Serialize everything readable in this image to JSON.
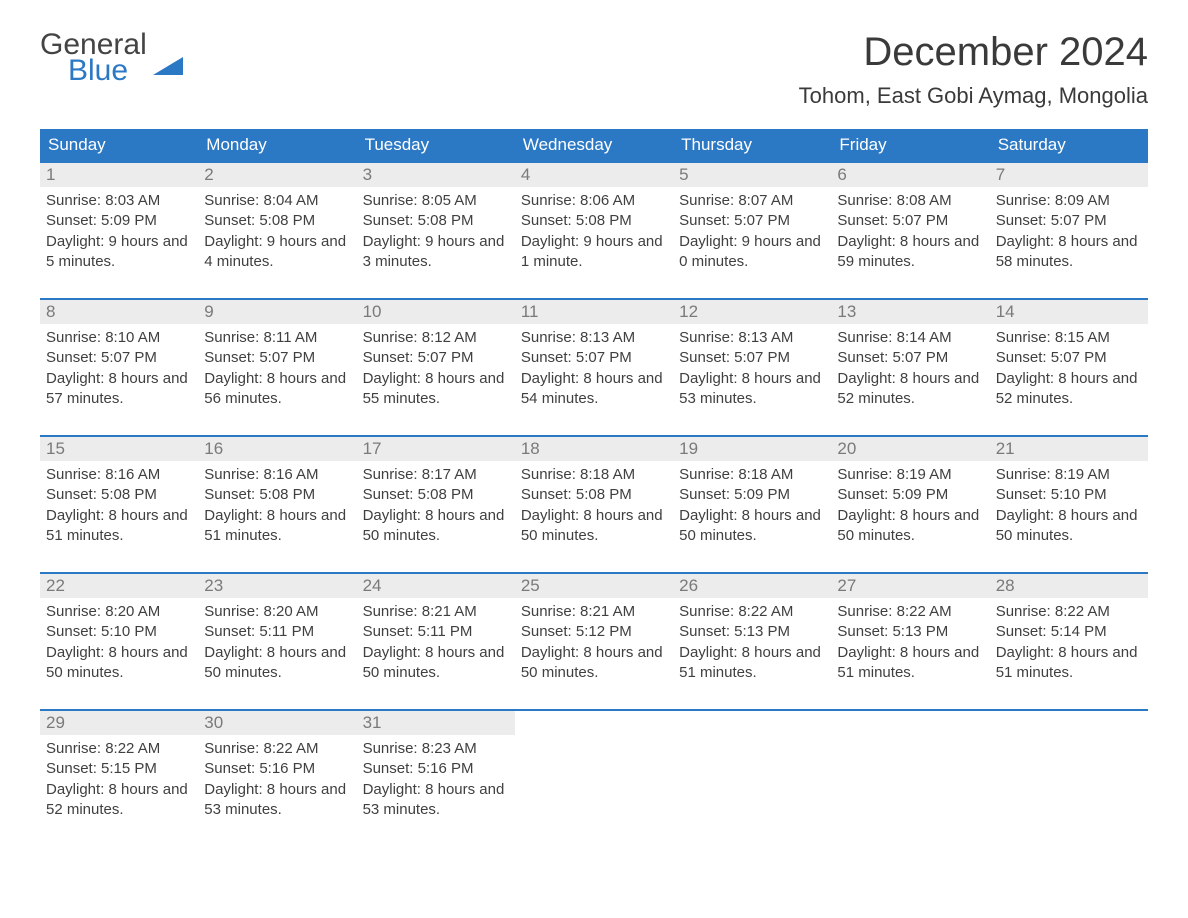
{
  "logo": {
    "text1": "General",
    "text2": "Blue"
  },
  "title": "December 2024",
  "location": "Tohom, East Gobi Aymag, Mongolia",
  "colors": {
    "header_bg": "#2b78c5",
    "header_text": "#ffffff",
    "daynum_bg": "#ececec",
    "daynum_text": "#7a7a7a",
    "body_text": "#404040",
    "week_border": "#2b78c5",
    "background": "#ffffff"
  },
  "typography": {
    "title_fontsize": 40,
    "location_fontsize": 22,
    "weekday_fontsize": 17,
    "daynum_fontsize": 17,
    "content_fontsize": 15
  },
  "weekdays": [
    "Sunday",
    "Monday",
    "Tuesday",
    "Wednesday",
    "Thursday",
    "Friday",
    "Saturday"
  ],
  "weeks": [
    [
      {
        "n": "1",
        "sunrise": "Sunrise: 8:03 AM",
        "sunset": "Sunset: 5:09 PM",
        "daylight": "Daylight: 9 hours and 5 minutes."
      },
      {
        "n": "2",
        "sunrise": "Sunrise: 8:04 AM",
        "sunset": "Sunset: 5:08 PM",
        "daylight": "Daylight: 9 hours and 4 minutes."
      },
      {
        "n": "3",
        "sunrise": "Sunrise: 8:05 AM",
        "sunset": "Sunset: 5:08 PM",
        "daylight": "Daylight: 9 hours and 3 minutes."
      },
      {
        "n": "4",
        "sunrise": "Sunrise: 8:06 AM",
        "sunset": "Sunset: 5:08 PM",
        "daylight": "Daylight: 9 hours and 1 minute."
      },
      {
        "n": "5",
        "sunrise": "Sunrise: 8:07 AM",
        "sunset": "Sunset: 5:07 PM",
        "daylight": "Daylight: 9 hours and 0 minutes."
      },
      {
        "n": "6",
        "sunrise": "Sunrise: 8:08 AM",
        "sunset": "Sunset: 5:07 PM",
        "daylight": "Daylight: 8 hours and 59 minutes."
      },
      {
        "n": "7",
        "sunrise": "Sunrise: 8:09 AM",
        "sunset": "Sunset: 5:07 PM",
        "daylight": "Daylight: 8 hours and 58 minutes."
      }
    ],
    [
      {
        "n": "8",
        "sunrise": "Sunrise: 8:10 AM",
        "sunset": "Sunset: 5:07 PM",
        "daylight": "Daylight: 8 hours and 57 minutes."
      },
      {
        "n": "9",
        "sunrise": "Sunrise: 8:11 AM",
        "sunset": "Sunset: 5:07 PM",
        "daylight": "Daylight: 8 hours and 56 minutes."
      },
      {
        "n": "10",
        "sunrise": "Sunrise: 8:12 AM",
        "sunset": "Sunset: 5:07 PM",
        "daylight": "Daylight: 8 hours and 55 minutes."
      },
      {
        "n": "11",
        "sunrise": "Sunrise: 8:13 AM",
        "sunset": "Sunset: 5:07 PM",
        "daylight": "Daylight: 8 hours and 54 minutes."
      },
      {
        "n": "12",
        "sunrise": "Sunrise: 8:13 AM",
        "sunset": "Sunset: 5:07 PM",
        "daylight": "Daylight: 8 hours and 53 minutes."
      },
      {
        "n": "13",
        "sunrise": "Sunrise: 8:14 AM",
        "sunset": "Sunset: 5:07 PM",
        "daylight": "Daylight: 8 hours and 52 minutes."
      },
      {
        "n": "14",
        "sunrise": "Sunrise: 8:15 AM",
        "sunset": "Sunset: 5:07 PM",
        "daylight": "Daylight: 8 hours and 52 minutes."
      }
    ],
    [
      {
        "n": "15",
        "sunrise": "Sunrise: 8:16 AM",
        "sunset": "Sunset: 5:08 PM",
        "daylight": "Daylight: 8 hours and 51 minutes."
      },
      {
        "n": "16",
        "sunrise": "Sunrise: 8:16 AM",
        "sunset": "Sunset: 5:08 PM",
        "daylight": "Daylight: 8 hours and 51 minutes."
      },
      {
        "n": "17",
        "sunrise": "Sunrise: 8:17 AM",
        "sunset": "Sunset: 5:08 PM",
        "daylight": "Daylight: 8 hours and 50 minutes."
      },
      {
        "n": "18",
        "sunrise": "Sunrise: 8:18 AM",
        "sunset": "Sunset: 5:08 PM",
        "daylight": "Daylight: 8 hours and 50 minutes."
      },
      {
        "n": "19",
        "sunrise": "Sunrise: 8:18 AM",
        "sunset": "Sunset: 5:09 PM",
        "daylight": "Daylight: 8 hours and 50 minutes."
      },
      {
        "n": "20",
        "sunrise": "Sunrise: 8:19 AM",
        "sunset": "Sunset: 5:09 PM",
        "daylight": "Daylight: 8 hours and 50 minutes."
      },
      {
        "n": "21",
        "sunrise": "Sunrise: 8:19 AM",
        "sunset": "Sunset: 5:10 PM",
        "daylight": "Daylight: 8 hours and 50 minutes."
      }
    ],
    [
      {
        "n": "22",
        "sunrise": "Sunrise: 8:20 AM",
        "sunset": "Sunset: 5:10 PM",
        "daylight": "Daylight: 8 hours and 50 minutes."
      },
      {
        "n": "23",
        "sunrise": "Sunrise: 8:20 AM",
        "sunset": "Sunset: 5:11 PM",
        "daylight": "Daylight: 8 hours and 50 minutes."
      },
      {
        "n": "24",
        "sunrise": "Sunrise: 8:21 AM",
        "sunset": "Sunset: 5:11 PM",
        "daylight": "Daylight: 8 hours and 50 minutes."
      },
      {
        "n": "25",
        "sunrise": "Sunrise: 8:21 AM",
        "sunset": "Sunset: 5:12 PM",
        "daylight": "Daylight: 8 hours and 50 minutes."
      },
      {
        "n": "26",
        "sunrise": "Sunrise: 8:22 AM",
        "sunset": "Sunset: 5:13 PM",
        "daylight": "Daylight: 8 hours and 51 minutes."
      },
      {
        "n": "27",
        "sunrise": "Sunrise: 8:22 AM",
        "sunset": "Sunset: 5:13 PM",
        "daylight": "Daylight: 8 hours and 51 minutes."
      },
      {
        "n": "28",
        "sunrise": "Sunrise: 8:22 AM",
        "sunset": "Sunset: 5:14 PM",
        "daylight": "Daylight: 8 hours and 51 minutes."
      }
    ],
    [
      {
        "n": "29",
        "sunrise": "Sunrise: 8:22 AM",
        "sunset": "Sunset: 5:15 PM",
        "daylight": "Daylight: 8 hours and 52 minutes."
      },
      {
        "n": "30",
        "sunrise": "Sunrise: 8:22 AM",
        "sunset": "Sunset: 5:16 PM",
        "daylight": "Daylight: 8 hours and 53 minutes."
      },
      {
        "n": "31",
        "sunrise": "Sunrise: 8:23 AM",
        "sunset": "Sunset: 5:16 PM",
        "daylight": "Daylight: 8 hours and 53 minutes."
      },
      null,
      null,
      null,
      null
    ]
  ]
}
